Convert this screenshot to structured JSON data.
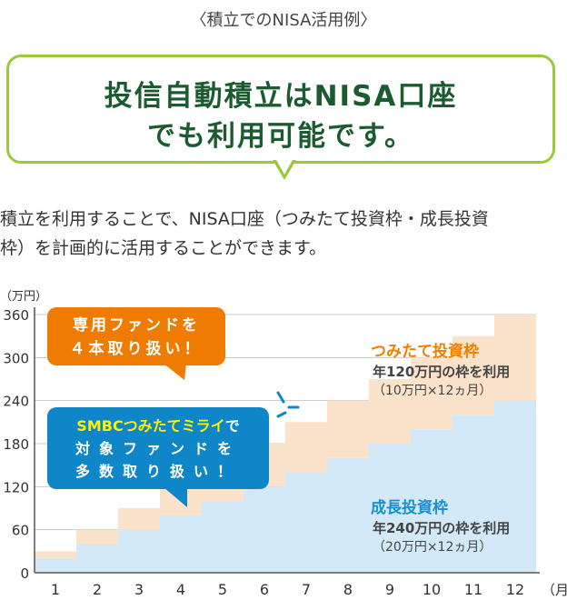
{
  "caption": "〈積立でのNISA活用例〉",
  "headline": {
    "line1": "投信自動積立はNISA口座",
    "line2": "でも利用可能です。"
  },
  "description": {
    "line1": "積立を利用することで、NISA口座（つみたて投資枠・成長投資",
    "line2": "枠）を計画的に活用することができます。"
  },
  "callouts": {
    "orange": {
      "line1": "専用ファンドを",
      "line2": "４本取り扱い！",
      "color": "#ef7c00"
    },
    "blue": {
      "line1_highlight": "SMBCつみたてミライ",
      "line1_rest": "で",
      "line2": "対象ファンドを",
      "line3": "多数取り扱い！",
      "color": "#0f86c8",
      "highlight_color": "#fff200"
    }
  },
  "colors": {
    "tsumitate": "#fbe3cb",
    "seicho": "#d3e9f8",
    "tsumitate_text": "#f07f00",
    "seicho_text": "#1a8fd0",
    "grid": "#c8c8c8",
    "bubble_border": "#9bc93a",
    "headline": "#1c5b30"
  },
  "chart_data": {
    "type": "area",
    "ylabel": "（万円）",
    "xunit": "（月）",
    "ylim": [
      0,
      360
    ],
    "yticks": [
      "0",
      "60",
      "120",
      "180",
      "240",
      "300",
      "360"
    ],
    "categories": [
      "1",
      "2",
      "3",
      "4",
      "5",
      "6",
      "7",
      "8",
      "9",
      "10",
      "11",
      "12"
    ],
    "series": [
      {
        "name": "成長投資枠",
        "values": [
          20,
          40,
          60,
          80,
          100,
          120,
          140,
          160,
          180,
          200,
          220,
          240
        ]
      },
      {
        "name": "つみたて投資枠",
        "values": [
          10,
          20,
          30,
          40,
          50,
          60,
          70,
          80,
          90,
          100,
          110,
          120
        ]
      }
    ],
    "labels": {
      "tsumitate": {
        "title": "つみたて投資枠",
        "sub": "年120万円の枠を利用",
        "note": "（10万円×12ヵ月）"
      },
      "seicho": {
        "title": "成長投資枠",
        "sub": "年240万円の枠を利用",
        "note": "（20万円×12ヵ月）"
      }
    },
    "grid": true
  }
}
